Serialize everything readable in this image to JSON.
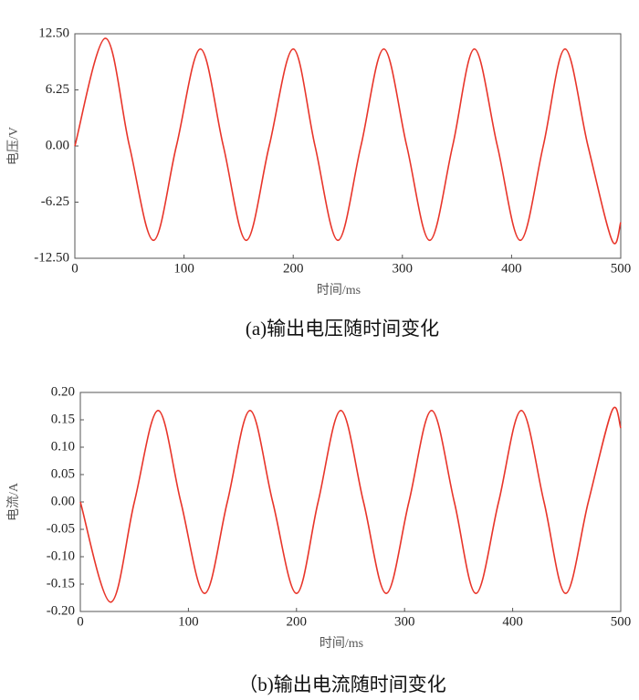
{
  "chart_data": [
    {
      "type": "line",
      "x": [
        0,
        28,
        50,
        72,
        93,
        115,
        136,
        157,
        178,
        200,
        220,
        241,
        262,
        283,
        304,
        325,
        346,
        366,
        387,
        408,
        429,
        449,
        470,
        492,
        500
      ],
      "values": [
        0,
        12.0,
        0,
        -10.5,
        0,
        10.8,
        0,
        -10.5,
        0,
        10.8,
        0,
        -10.5,
        0,
        10.8,
        0,
        -10.5,
        0,
        10.8,
        0,
        -10.5,
        0,
        10.8,
        0,
        -10.5,
        -8.5
      ],
      "color": "#e8352a",
      "xlim": [
        0,
        500
      ],
      "xticks": [
        0,
        100,
        200,
        300,
        400,
        500
      ],
      "ylim": [
        -12.5,
        12.5
      ],
      "yticks": [
        {
          "value": -12.5,
          "label": "-12.50"
        },
        {
          "value": -6.25,
          "label": "-6.25"
        },
        {
          "value": 0,
          "label": "0.00"
        },
        {
          "value": 6.25,
          "label": "6.25"
        },
        {
          "value": 12.5,
          "label": "12.50"
        }
      ],
      "xlabel": "时间/ms",
      "ylabel": "电压/V",
      "caption": "(a)输出电压随时间变化",
      "grid": false
    },
    {
      "type": "line",
      "x": [
        0,
        28,
        50,
        72,
        93,
        115,
        136,
        157,
        178,
        200,
        220,
        241,
        262,
        283,
        304,
        325,
        346,
        366,
        387,
        408,
        429,
        449,
        470,
        492,
        500
      ],
      "values": [
        0,
        -0.183,
        0,
        0.167,
        0,
        -0.167,
        0,
        0.167,
        0,
        -0.167,
        0,
        0.167,
        0,
        -0.167,
        0,
        0.167,
        0,
        -0.167,
        0,
        0.167,
        0,
        -0.167,
        0,
        0.167,
        0.135
      ],
      "color": "#e8352a",
      "xlim": [
        0,
        500
      ],
      "xticks": [
        0,
        100,
        200,
        300,
        400,
        500
      ],
      "ylim": [
        -0.2,
        0.2
      ],
      "yticks": [
        {
          "value": -0.2,
          "label": "-0.20"
        },
        {
          "value": -0.15,
          "label": "-0.15"
        },
        {
          "value": -0.1,
          "label": "-0.10"
        },
        {
          "value": -0.05,
          "label": "-0.05"
        },
        {
          "value": 0,
          "label": "0.00"
        },
        {
          "value": 0.05,
          "label": "0.05"
        },
        {
          "value": 0.1,
          "label": "0.10"
        },
        {
          "value": 0.15,
          "label": "0.15"
        },
        {
          "value": 0.2,
          "label": "0.20"
        }
      ],
      "xlabel": "时间/ms",
      "ylabel": "电流/A",
      "caption": "（b)输出电流随时间变化",
      "grid": false
    }
  ]
}
